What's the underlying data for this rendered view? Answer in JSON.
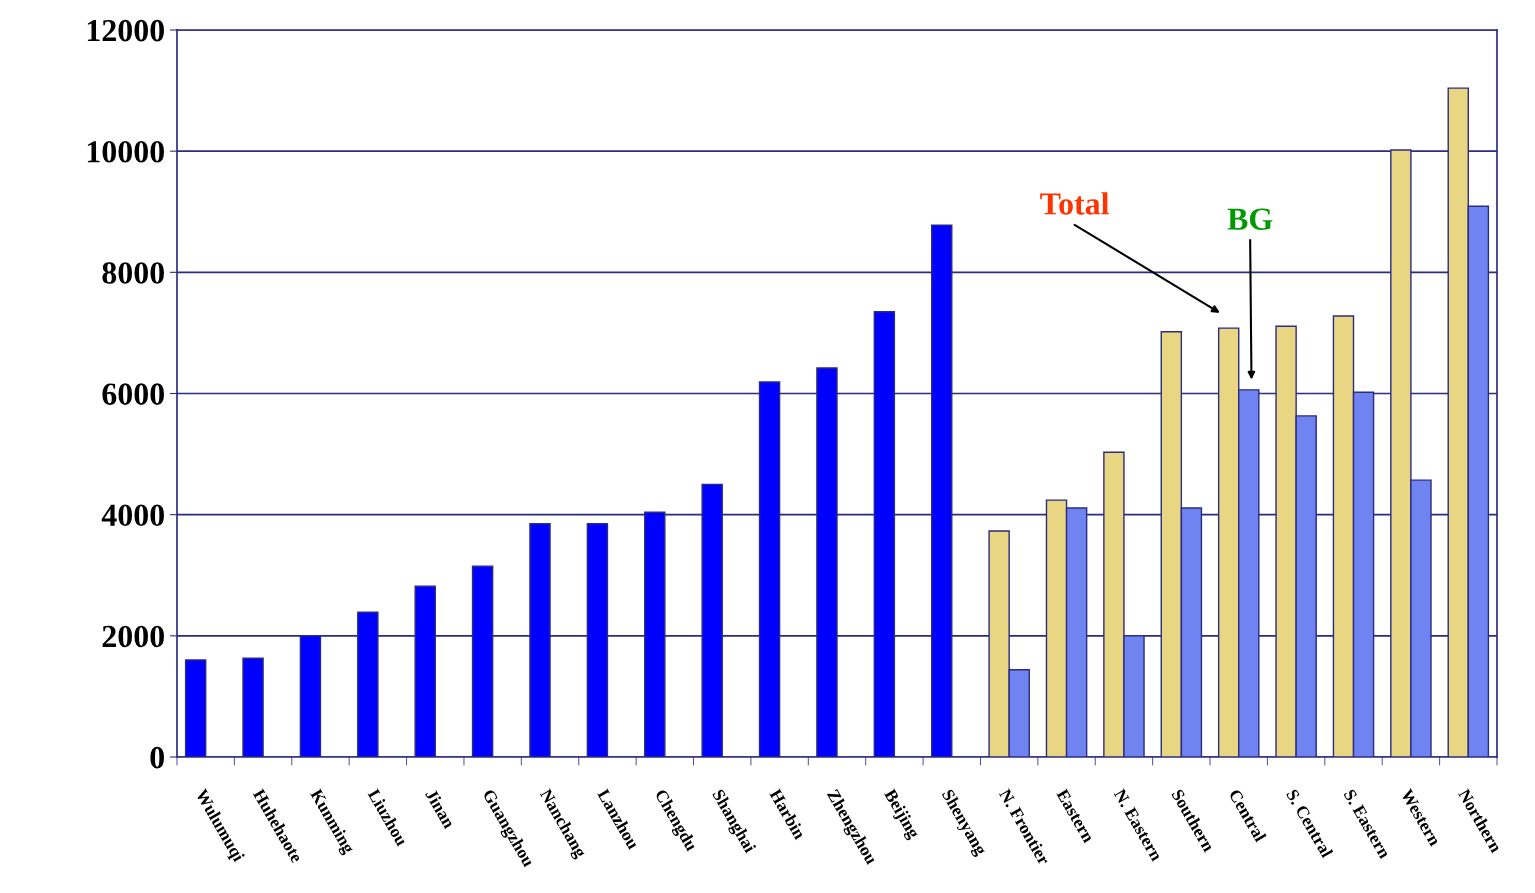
{
  "chart_data": {
    "type": "bar",
    "categories": [
      "Wulumuqi",
      "Huhehaote",
      "Kunming",
      "Liuzhou",
      "Jinan",
      "Guangzhou",
      "Nanchang",
      "Lanzhou",
      "Chengdu",
      "Shanghai",
      "Harbin",
      "Zhengzhou",
      "Beijing",
      "Shenyang",
      "N. Frontier",
      "Eastern",
      "N. Eastern",
      "Southern",
      "Central",
      "S. Central",
      "S. Eastern",
      "Western",
      "Northern"
    ],
    "series": [
      {
        "colors": [
          "#0000ff",
          "#0000ff",
          "#0000ff",
          "#0000ff",
          "#0000ff",
          "#0000ff",
          "#0000ff",
          "#0000ff",
          "#0000ff",
          "#0000ff",
          "#0000ff",
          "#0000ff",
          "#0000ff",
          "#0000ff",
          "#e8d682",
          "#e8d682",
          "#e8d682",
          "#e8d682",
          "#e8d682",
          "#e8d682",
          "#e8d682",
          "#e8d682",
          "#e8d682"
        ],
        "values": [
          1600,
          1630,
          2000,
          2390,
          2820,
          3150,
          3850,
          3850,
          4040,
          4500,
          6190,
          6420,
          7350,
          8780,
          3730,
          4240,
          5030,
          7020,
          7080,
          7110,
          7280,
          10020,
          11040
        ]
      },
      {
        "color": "#6f84f0",
        "values": [
          null,
          null,
          null,
          null,
          null,
          null,
          null,
          null,
          null,
          null,
          null,
          null,
          null,
          null,
          1440,
          4110,
          2000,
          4110,
          6060,
          5630,
          6020,
          4570,
          9090
        ]
      }
    ],
    "annotations": [
      "Total",
      "BG"
    ],
    "ylim": [
      0,
      12000
    ],
    "yticks": [
      0,
      2000,
      4000,
      6000,
      8000,
      10000,
      12000
    ],
    "grid": "y",
    "legend": false
  }
}
